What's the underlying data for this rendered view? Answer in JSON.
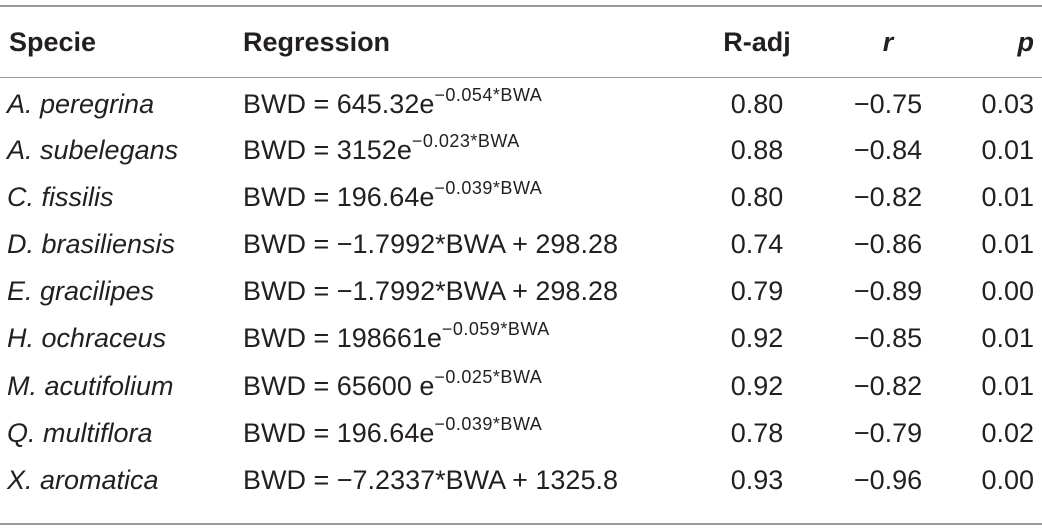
{
  "table": {
    "headers": {
      "specie": "Specie",
      "regression": "Regression",
      "r_adj": "R-adj",
      "r": "r",
      "p": "p"
    },
    "rows": [
      {
        "specie": "A. peregrina",
        "reg_base": "BWD = 645.32e",
        "reg_exp": "−0.054*BWA",
        "r_adj": "0.80",
        "r": "−0.75",
        "p": "0.03"
      },
      {
        "specie": "A. subelegans",
        "reg_base": "BWD = 3152e",
        "reg_exp": "−0.023*BWA",
        "r_adj": "0.88",
        "r": "−0.84",
        "p": "0.01"
      },
      {
        "specie": "C. fissilis",
        "reg_base": "BWD = 196.64e",
        "reg_exp": "−0.039*BWA",
        "r_adj": "0.80",
        "r": "−0.82",
        "p": "0.01"
      },
      {
        "specie": "D. brasiliensis",
        "reg_base": "BWD = −1.7992*BWA + 298.28",
        "reg_exp": "",
        "r_adj": "0.74",
        "r": "−0.86",
        "p": "0.01"
      },
      {
        "specie": "E. gracilipes",
        "reg_base": "BWD = −1.7992*BWA + 298.28",
        "reg_exp": "",
        "r_adj": "0.79",
        "r": "−0.89",
        "p": "0.00"
      },
      {
        "specie": "H. ochraceus",
        "reg_base": "BWD = 198661e",
        "reg_exp": "−0.059*BWA",
        "r_adj": "0.92",
        "r": "−0.85",
        "p": "0.01"
      },
      {
        "specie": "M. acutifolium",
        "reg_base": "BWD = 65600 e",
        "reg_exp": "−0.025*BWA",
        "r_adj": "0.92",
        "r": "−0.82",
        "p": "0.01"
      },
      {
        "specie": "Q. multiflora",
        "reg_base": "BWD = 196.64e",
        "reg_exp": "−0.039*BWA",
        "r_adj": "0.78",
        "r": "−0.79",
        "p": "0.02"
      },
      {
        "specie": "X. aromatica",
        "reg_base": "BWD = −7.2337*BWA + 1325.8",
        "reg_exp": "",
        "r_adj": "0.93",
        "r": "−0.96",
        "p": "0.00"
      }
    ]
  }
}
